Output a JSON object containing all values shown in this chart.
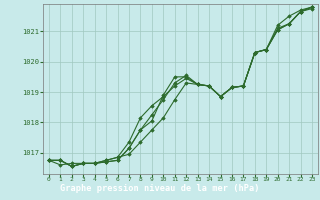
{
  "background_color": "#c8eaea",
  "plot_bg_color": "#c8eaea",
  "label_bar_color": "#2d6b2d",
  "line_color": "#2d6b2d",
  "marker_color": "#2d6b2d",
  "grid_color": "#a0c8c0",
  "title": "Graphe pression niveau de la mer (hPa)",
  "yticks": [
    1017,
    1018,
    1019,
    1020,
    1021
  ],
  "ylim": [
    1016.3,
    1021.9
  ],
  "xlim": [
    -0.5,
    23.5
  ],
  "xticks": [
    0,
    1,
    2,
    3,
    4,
    5,
    6,
    7,
    8,
    9,
    10,
    11,
    12,
    13,
    14,
    15,
    16,
    17,
    18,
    19,
    20,
    21,
    22,
    23
  ],
  "series": [
    [
      1016.75,
      1016.75,
      1016.55,
      1016.65,
      1016.65,
      1016.7,
      1016.75,
      1017.15,
      1017.75,
      1018.25,
      1018.75,
      1019.3,
      1019.55,
      1019.25,
      1019.2,
      1018.85,
      1019.15,
      1019.2,
      1020.3,
      1020.4,
      1021.1,
      1021.25,
      1021.65,
      1021.75
    ],
    [
      1016.75,
      1016.75,
      1016.55,
      1016.65,
      1016.65,
      1016.7,
      1016.75,
      1017.15,
      1017.75,
      1018.05,
      1018.9,
      1019.5,
      1019.5,
      1019.25,
      1019.2,
      1018.85,
      1019.15,
      1019.2,
      1020.3,
      1020.4,
      1021.2,
      1021.5,
      1021.7,
      1021.8
    ],
    [
      1016.75,
      1016.75,
      1016.55,
      1016.65,
      1016.65,
      1016.75,
      1016.85,
      1017.35,
      1018.15,
      1018.55,
      1018.85,
      1019.2,
      1019.45,
      1019.25,
      1019.2,
      1018.85,
      1019.15,
      1019.2,
      1020.3,
      1020.4,
      1021.05,
      1021.25,
      1021.65,
      1021.8
    ],
    [
      1016.75,
      1016.6,
      1016.65,
      1016.65,
      1016.65,
      1016.75,
      1016.85,
      1016.95,
      1017.35,
      1017.75,
      1018.15,
      1018.75,
      1019.3,
      1019.25,
      1019.2,
      1018.85,
      1019.15,
      1019.2,
      1020.3,
      1020.4,
      1021.05,
      1021.25,
      1021.65,
      1021.8
    ]
  ]
}
